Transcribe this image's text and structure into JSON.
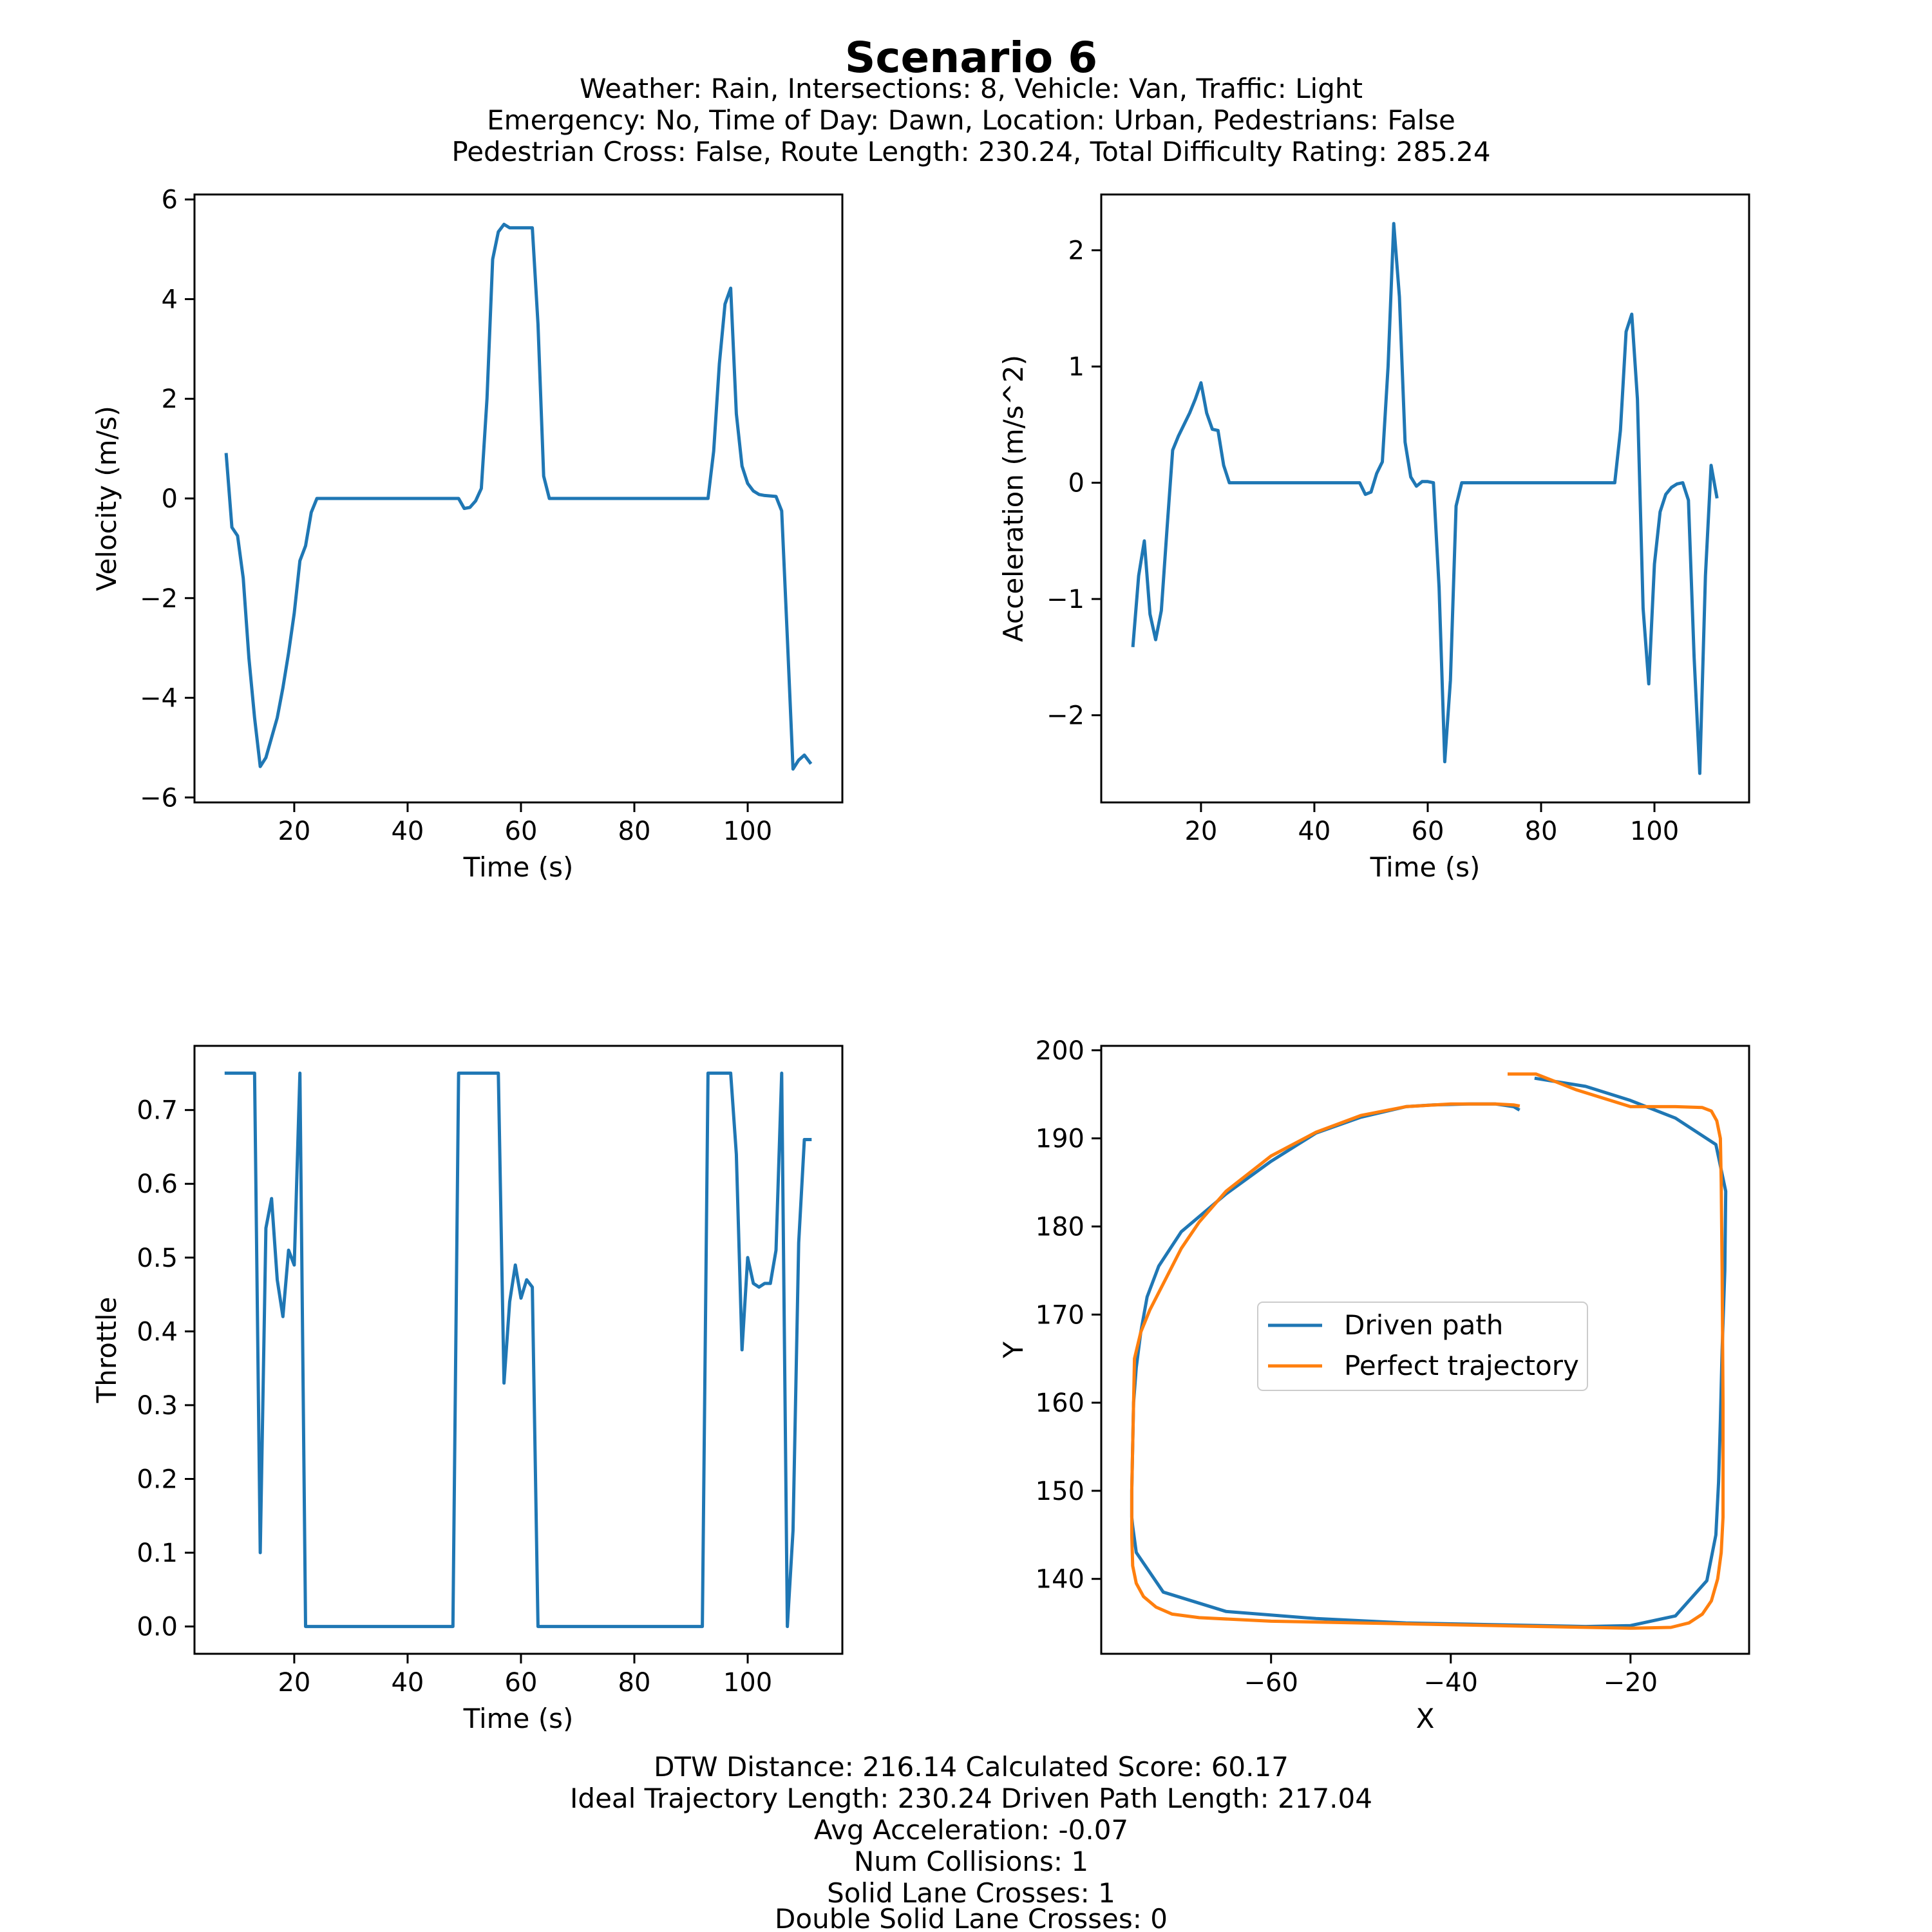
{
  "figure": {
    "title": "Scenario 6",
    "subtitle_lines": [
      "Weather: Rain, Intersections: 8, Vehicle: Van, Traffic: Light",
      "Emergency: No, Time of Day: Dawn, Location: Urban, Pedestrians: False",
      "Pedestrian Cross: False, Route Length: 230.24, Total Difficulty Rating: 285.24"
    ],
    "footer_lines": [
      "DTW Distance: 216.14  Calculated Score: 60.17",
      "Ideal Trajectory Length: 230.24   Driven Path Length: 217.04",
      "Avg Acceleration: -0.07",
      "Num Collisions: 1",
      "Solid Lane Crosses: 1",
      "Double Solid Lane Crosses: 0"
    ]
  },
  "colors": {
    "series_blue": "#1f77b4",
    "series_orange": "#ff7f0e"
  },
  "chart_data": [
    {
      "type": "line",
      "xlabel": "Time (s)",
      "ylabel": "Velocity (m/s)",
      "xlim": [
        2.4,
        116.7
      ],
      "ylim": [
        -6.1,
        6.1
      ],
      "xticks": [
        20,
        40,
        60,
        80,
        100
      ],
      "yticks": [
        -6,
        -4,
        -2,
        0,
        2,
        4,
        6
      ],
      "grid": false,
      "series": [
        {
          "color": "#1f77b4",
          "x": [
            8,
            9,
            10,
            11,
            12,
            13,
            14,
            15,
            16,
            17,
            18,
            19,
            20,
            21,
            22,
            23,
            24,
            48,
            49,
            50,
            51,
            52,
            53,
            54,
            55,
            56,
            57,
            58,
            59,
            60,
            61,
            62,
            63,
            64,
            65,
            66,
            92,
            93,
            94,
            95,
            96,
            97,
            98,
            99,
            100,
            101,
            102,
            103,
            104,
            105,
            106,
            107,
            108,
            109,
            110,
            111
          ],
          "y": [
            0.88,
            -0.58,
            -0.75,
            -1.6,
            -3.2,
            -4.4,
            -5.38,
            -5.2,
            -4.8,
            -4.4,
            -3.8,
            -3.1,
            -2.3,
            -1.25,
            -0.95,
            -0.28,
            0,
            0,
            0,
            -0.2,
            -0.18,
            -0.05,
            0.2,
            2.0,
            4.8,
            5.35,
            5.5,
            5.43,
            5.43,
            5.43,
            5.43,
            5.43,
            3.5,
            0.45,
            0,
            0,
            0,
            0,
            0.95,
            2.7,
            3.9,
            4.22,
            1.7,
            0.65,
            0.3,
            0.15,
            0.08,
            0.06,
            0.05,
            0.04,
            -0.25,
            -2.8,
            -5.43,
            -5.25,
            -5.15,
            -5.3
          ]
        }
      ]
    },
    {
      "type": "line",
      "xlabel": "Time (s)",
      "ylabel": "Acceleration (m/s^2)",
      "xlim": [
        2.4,
        116.7
      ],
      "ylim": [
        -2.75,
        2.48
      ],
      "xticks": [
        20,
        40,
        60,
        80,
        100
      ],
      "yticks": [
        -2,
        -1,
        0,
        1,
        2
      ],
      "grid": false,
      "series": [
        {
          "color": "#1f77b4",
          "x": [
            8,
            9,
            10,
            11,
            12,
            13,
            14,
            15,
            16,
            17,
            18,
            19,
            20,
            21,
            22,
            23,
            24,
            25,
            48,
            49,
            50,
            51,
            52,
            53,
            54,
            55,
            56,
            57,
            58,
            59,
            60,
            61,
            62,
            63,
            64,
            65,
            66,
            67,
            92,
            93,
            94,
            95,
            96,
            97,
            98,
            99,
            100,
            101,
            102,
            103,
            104,
            105,
            106,
            107,
            108,
            109,
            110,
            111
          ],
          "y": [
            -1.4,
            -0.8,
            -0.5,
            -1.13,
            -1.35,
            -1.1,
            -0.4,
            0.28,
            0.4,
            0.5,
            0.6,
            0.72,
            0.86,
            0.6,
            0.46,
            0.45,
            0.15,
            0,
            0,
            -0.1,
            -0.08,
            0.08,
            0.18,
            1.0,
            2.23,
            1.6,
            0.35,
            0.05,
            -0.03,
            0.01,
            0.01,
            0,
            -0.9,
            -2.4,
            -1.7,
            -0.2,
            0,
            0,
            0,
            0,
            0.45,
            1.3,
            1.45,
            0.72,
            -1.08,
            -1.73,
            -0.7,
            -0.25,
            -0.1,
            -0.04,
            -0.01,
            0,
            -0.15,
            -1.5,
            -2.5,
            -0.8,
            0.15,
            -0.12
          ]
        }
      ]
    },
    {
      "type": "line",
      "xlabel": "Time (s)",
      "ylabel": "Throttle",
      "xlim": [
        2.4,
        116.7
      ],
      "ylim": [
        -0.037,
        0.787
      ],
      "xticks": [
        20,
        40,
        60,
        80,
        100
      ],
      "yticks": [
        0.0,
        0.1,
        0.2,
        0.3,
        0.4,
        0.5,
        0.6,
        0.7
      ],
      "ytick_labels": [
        "0.0",
        "0.1",
        "0.2",
        "0.3",
        "0.4",
        "0.5",
        "0.6",
        "0.7"
      ],
      "grid": false,
      "series": [
        {
          "color": "#1f77b4",
          "x": [
            8,
            9,
            10,
            11,
            12,
            13,
            14,
            15,
            16,
            17,
            18,
            19,
            20,
            21,
            22,
            23,
            48,
            49,
            50,
            51,
            52,
            53,
            54,
            55,
            56,
            57,
            58,
            59,
            60,
            61,
            62,
            63,
            64,
            65,
            92,
            93,
            94,
            95,
            96,
            97,
            98,
            99,
            100,
            101,
            102,
            103,
            104,
            105,
            106,
            107,
            108,
            109,
            110,
            111
          ],
          "y": [
            0.75,
            0.75,
            0.75,
            0.75,
            0.75,
            0.75,
            0.1,
            0.54,
            0.58,
            0.47,
            0.42,
            0.51,
            0.49,
            0.75,
            0,
            0,
            0,
            0.75,
            0.75,
            0.75,
            0.75,
            0.75,
            0.75,
            0.75,
            0.75,
            0.33,
            0.44,
            0.49,
            0.445,
            0.47,
            0.46,
            0,
            0,
            0,
            0,
            0.75,
            0.75,
            0.75,
            0.75,
            0.75,
            0.64,
            0.375,
            0.5,
            0.465,
            0.46,
            0.465,
            0.465,
            0.51,
            0.75,
            0,
            0.13,
            0.52,
            0.66,
            0.66
          ]
        }
      ]
    },
    {
      "type": "line",
      "xlabel": "X",
      "ylabel": "Y",
      "xlim": [
        -78.9,
        -6.8
      ],
      "ylim": [
        131.5,
        200.5
      ],
      "xticks": [
        -60,
        -40,
        -20
      ],
      "yticks": [
        140,
        150,
        160,
        170,
        180,
        190,
        200
      ],
      "grid": false,
      "legend": {
        "position": "center"
      },
      "series": [
        {
          "name": "Driven path",
          "color": "#1f77b4",
          "x": [
            -32.5,
            -33,
            -35,
            -38,
            -42,
            -45,
            -50,
            -55,
            -60,
            -65,
            -70,
            -72.5,
            -73.8,
            -74.5,
            -75,
            -75.3,
            -75.5,
            -75.5,
            -75.4,
            -75,
            -72,
            -65,
            -55,
            -45,
            -35,
            -25,
            -20,
            -15,
            -11.5,
            -10.5,
            -10.2,
            -10,
            -9.8,
            -9.5,
            -9.4,
            -10.5,
            -15,
            -20,
            -25,
            -30.5
          ],
          "y": [
            193.3,
            193.6,
            193.9,
            193.9,
            193.8,
            193.6,
            192.4,
            190.6,
            187.4,
            183.7,
            179.4,
            175.5,
            172,
            168,
            164,
            160,
            150,
            147,
            146,
            143,
            138.5,
            136.3,
            135.5,
            135,
            134.8,
            134.6,
            134.7,
            135.8,
            139.8,
            145,
            151,
            158,
            166,
            175,
            184,
            189.3,
            192.3,
            194.3,
            195.9,
            196.8
          ]
        },
        {
          "name": "Perfect trajectory",
          "color": "#ff7f0e",
          "x": [
            -33.5,
            -30.5,
            -26,
            -20,
            -15,
            -12,
            -11,
            -10.4,
            -10,
            -9.9,
            -9.8,
            -9.7,
            -9.7,
            -9.9,
            -10.3,
            -11,
            -12,
            -13.5,
            -15.5,
            -20,
            -30,
            -40,
            -50,
            -60,
            -68,
            -71,
            -72.8,
            -74.2,
            -75,
            -75.4,
            -75.5,
            -75.5,
            -75.2,
            -74.5,
            -73.5,
            -72,
            -70,
            -68,
            -65,
            -60,
            -55,
            -50,
            -45,
            -40,
            -35,
            -33,
            -32.5
          ],
          "y": [
            197.3,
            197.3,
            195.5,
            193.6,
            193.6,
            193.5,
            193.1,
            192,
            190,
            185,
            175,
            160,
            147,
            143,
            140,
            137.5,
            136,
            135,
            134.5,
            134.4,
            134.6,
            134.8,
            135,
            135.2,
            135.6,
            136,
            136.8,
            138,
            139.5,
            141.5,
            145,
            150,
            165,
            168,
            170.5,
            173.5,
            177.5,
            180.5,
            184,
            188,
            190.7,
            192.6,
            193.6,
            193.9,
            193.9,
            193.8,
            193.7
          ]
        }
      ]
    }
  ]
}
